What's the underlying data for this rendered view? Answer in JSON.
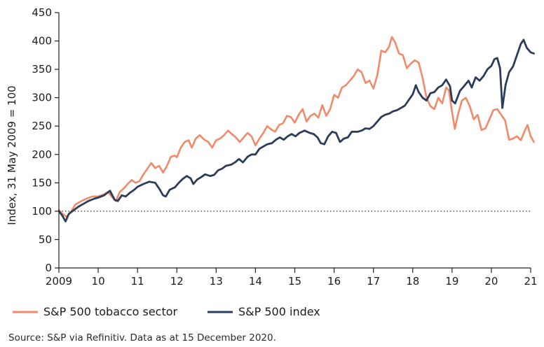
{
  "chart_data": {
    "type": "line",
    "title": "",
    "xlabel": "",
    "ylabel": "Index, 31 May 2009 = 100",
    "xlim": [
      2009.0,
      2021.0
    ],
    "ylim": [
      0,
      450
    ],
    "y_ticks": [
      0,
      50,
      100,
      150,
      200,
      250,
      300,
      350,
      400,
      450
    ],
    "x_ticks": [
      {
        "value": 2009,
        "label": "2009"
      },
      {
        "value": 2010,
        "label": "10"
      },
      {
        "value": 2011,
        "label": "11"
      },
      {
        "value": 2012,
        "label": "12"
      },
      {
        "value": 2013,
        "label": "13"
      },
      {
        "value": 2014,
        "label": "14"
      },
      {
        "value": 2015,
        "label": "15"
      },
      {
        "value": 2016,
        "label": "16"
      },
      {
        "value": 2017,
        "label": "17"
      },
      {
        "value": 2018,
        "label": "18"
      },
      {
        "value": 2019,
        "label": "19"
      },
      {
        "value": 2020,
        "label": "20"
      },
      {
        "value": 2021,
        "label": "21"
      }
    ],
    "reference_line": {
      "y": 100,
      "style": "dotted"
    },
    "grid": false,
    "legend_position": "bottom",
    "series": [
      {
        "name": "S&P 500 tobacco sector",
        "color": "#f08a6a",
        "points": [
          [
            2009.0,
            102
          ],
          [
            2009.1,
            95
          ],
          [
            2009.2,
            90
          ],
          [
            2009.3,
            98
          ],
          [
            2009.42,
            112
          ],
          [
            2009.55,
            117
          ],
          [
            2009.7,
            122
          ],
          [
            2009.85,
            126
          ],
          [
            2010.0,
            126
          ],
          [
            2010.15,
            130
          ],
          [
            2010.25,
            134
          ],
          [
            2010.35,
            125
          ],
          [
            2010.45,
            118
          ],
          [
            2010.55,
            134
          ],
          [
            2010.65,
            140
          ],
          [
            2010.75,
            148
          ],
          [
            2010.85,
            155
          ],
          [
            2010.95,
            150
          ],
          [
            2011.05,
            153
          ],
          [
            2011.15,
            165
          ],
          [
            2011.25,
            175
          ],
          [
            2011.35,
            185
          ],
          [
            2011.45,
            176
          ],
          [
            2011.55,
            180
          ],
          [
            2011.65,
            168
          ],
          [
            2011.75,
            180
          ],
          [
            2011.85,
            196
          ],
          [
            2011.95,
            198
          ],
          [
            2012.0,
            195
          ],
          [
            2012.1,
            212
          ],
          [
            2012.2,
            222
          ],
          [
            2012.3,
            225
          ],
          [
            2012.38,
            212
          ],
          [
            2012.48,
            228
          ],
          [
            2012.58,
            234
          ],
          [
            2012.7,
            226
          ],
          [
            2012.8,
            222
          ],
          [
            2012.9,
            212
          ],
          [
            2013.0,
            225
          ],
          [
            2013.1,
            228
          ],
          [
            2013.2,
            234
          ],
          [
            2013.3,
            242
          ],
          [
            2013.4,
            236
          ],
          [
            2013.5,
            230
          ],
          [
            2013.6,
            222
          ],
          [
            2013.7,
            230
          ],
          [
            2013.8,
            238
          ],
          [
            2013.9,
            232
          ],
          [
            2014.0,
            216
          ],
          [
            2014.1,
            228
          ],
          [
            2014.2,
            238
          ],
          [
            2014.3,
            250
          ],
          [
            2014.4,
            244
          ],
          [
            2014.5,
            240
          ],
          [
            2014.6,
            252
          ],
          [
            2014.7,
            255
          ],
          [
            2014.8,
            268
          ],
          [
            2014.9,
            266
          ],
          [
            2015.0,
            256
          ],
          [
            2015.1,
            270
          ],
          [
            2015.2,
            280
          ],
          [
            2015.3,
            258
          ],
          [
            2015.4,
            268
          ],
          [
            2015.5,
            272
          ],
          [
            2015.6,
            265
          ],
          [
            2015.7,
            287
          ],
          [
            2015.8,
            268
          ],
          [
            2015.9,
            280
          ],
          [
            2016.0,
            305
          ],
          [
            2016.1,
            300
          ],
          [
            2016.2,
            318
          ],
          [
            2016.3,
            322
          ],
          [
            2016.4,
            330
          ],
          [
            2016.5,
            338
          ],
          [
            2016.6,
            350
          ],
          [
            2016.7,
            345
          ],
          [
            2016.8,
            326
          ],
          [
            2016.9,
            330
          ],
          [
            2017.0,
            316
          ],
          [
            2017.1,
            340
          ],
          [
            2017.2,
            383
          ],
          [
            2017.3,
            380
          ],
          [
            2017.4,
            390
          ],
          [
            2017.47,
            407
          ],
          [
            2017.55,
            398
          ],
          [
            2017.65,
            378
          ],
          [
            2017.75,
            375
          ],
          [
            2017.85,
            352
          ],
          [
            2017.95,
            360
          ],
          [
            2018.05,
            366
          ],
          [
            2018.15,
            362
          ],
          [
            2018.25,
            335
          ],
          [
            2018.35,
            300
          ],
          [
            2018.45,
            285
          ],
          [
            2018.55,
            280
          ],
          [
            2018.65,
            300
          ],
          [
            2018.75,
            290
          ],
          [
            2018.85,
            318
          ],
          [
            2018.92,
            313
          ],
          [
            2019.0,
            275
          ],
          [
            2019.07,
            245
          ],
          [
            2019.15,
            270
          ],
          [
            2019.25,
            295
          ],
          [
            2019.35,
            300
          ],
          [
            2019.45,
            285
          ],
          [
            2019.55,
            262
          ],
          [
            2019.65,
            270
          ],
          [
            2019.75,
            243
          ],
          [
            2019.85,
            246
          ],
          [
            2019.95,
            262
          ],
          [
            2020.05,
            278
          ],
          [
            2020.15,
            280
          ],
          [
            2020.25,
            270
          ],
          [
            2020.35,
            260
          ],
          [
            2020.45,
            226
          ],
          [
            2020.55,
            228
          ],
          [
            2020.65,
            232
          ],
          [
            2020.75,
            225
          ],
          [
            2020.85,
            242
          ],
          [
            2020.92,
            252
          ],
          [
            2021.0,
            232
          ],
          [
            2021.08,
            222
          ]
        ]
      },
      {
        "name": "S&P 500 index",
        "color": "#2b3d5b",
        "points": [
          [
            2009.0,
            100
          ],
          [
            2009.08,
            93
          ],
          [
            2009.17,
            82
          ],
          [
            2009.25,
            95
          ],
          [
            2009.38,
            102
          ],
          [
            2009.5,
            108
          ],
          [
            2009.6,
            112
          ],
          [
            2009.75,
            118
          ],
          [
            2009.9,
            122
          ],
          [
            2010.0,
            124
          ],
          [
            2010.15,
            128
          ],
          [
            2010.3,
            136
          ],
          [
            2010.42,
            120
          ],
          [
            2010.5,
            118
          ],
          [
            2010.6,
            128
          ],
          [
            2010.7,
            126
          ],
          [
            2010.8,
            132
          ],
          [
            2010.92,
            138
          ],
          [
            2011.0,
            143
          ],
          [
            2011.15,
            148
          ],
          [
            2011.3,
            152
          ],
          [
            2011.45,
            150
          ],
          [
            2011.55,
            140
          ],
          [
            2011.65,
            128
          ],
          [
            2011.72,
            126
          ],
          [
            2011.82,
            138
          ],
          [
            2011.95,
            142
          ],
          [
            2012.05,
            150
          ],
          [
            2012.15,
            157
          ],
          [
            2012.25,
            162
          ],
          [
            2012.35,
            158
          ],
          [
            2012.42,
            148
          ],
          [
            2012.52,
            156
          ],
          [
            2012.62,
            160
          ],
          [
            2012.72,
            165
          ],
          [
            2012.85,
            162
          ],
          [
            2012.95,
            164
          ],
          [
            2013.05,
            172
          ],
          [
            2013.15,
            175
          ],
          [
            2013.25,
            180
          ],
          [
            2013.38,
            182
          ],
          [
            2013.48,
            186
          ],
          [
            2013.58,
            192
          ],
          [
            2013.68,
            186
          ],
          [
            2013.8,
            196
          ],
          [
            2013.9,
            200
          ],
          [
            2014.0,
            200
          ],
          [
            2014.1,
            210
          ],
          [
            2014.2,
            214
          ],
          [
            2014.3,
            218
          ],
          [
            2014.42,
            220
          ],
          [
            2014.52,
            226
          ],
          [
            2014.62,
            230
          ],
          [
            2014.72,
            226
          ],
          [
            2014.82,
            232
          ],
          [
            2014.92,
            236
          ],
          [
            2015.02,
            232
          ],
          [
            2015.12,
            238
          ],
          [
            2015.25,
            242
          ],
          [
            2015.38,
            238
          ],
          [
            2015.48,
            236
          ],
          [
            2015.58,
            230
          ],
          [
            2015.66,
            220
          ],
          [
            2015.75,
            218
          ],
          [
            2015.85,
            232
          ],
          [
            2015.95,
            240
          ],
          [
            2016.05,
            238
          ],
          [
            2016.15,
            222
          ],
          [
            2016.25,
            228
          ],
          [
            2016.35,
            230
          ],
          [
            2016.45,
            240
          ],
          [
            2016.6,
            240
          ],
          [
            2016.7,
            242
          ],
          [
            2016.8,
            246
          ],
          [
            2016.9,
            245
          ],
          [
            2017.0,
            250
          ],
          [
            2017.1,
            258
          ],
          [
            2017.2,
            266
          ],
          [
            2017.3,
            270
          ],
          [
            2017.4,
            272
          ],
          [
            2017.5,
            276
          ],
          [
            2017.6,
            278
          ],
          [
            2017.7,
            282
          ],
          [
            2017.8,
            286
          ],
          [
            2017.9,
            296
          ],
          [
            2018.0,
            306
          ],
          [
            2018.08,
            322
          ],
          [
            2018.15,
            310
          ],
          [
            2018.25,
            300
          ],
          [
            2018.35,
            295
          ],
          [
            2018.45,
            308
          ],
          [
            2018.55,
            310
          ],
          [
            2018.65,
            318
          ],
          [
            2018.75,
            322
          ],
          [
            2018.85,
            332
          ],
          [
            2018.95,
            320
          ],
          [
            2019.0,
            295
          ],
          [
            2019.08,
            290
          ],
          [
            2019.2,
            312
          ],
          [
            2019.3,
            320
          ],
          [
            2019.42,
            330
          ],
          [
            2019.5,
            318
          ],
          [
            2019.6,
            336
          ],
          [
            2019.7,
            330
          ],
          [
            2019.8,
            338
          ],
          [
            2019.9,
            350
          ],
          [
            2020.0,
            356
          ],
          [
            2020.08,
            368
          ],
          [
            2020.15,
            370
          ],
          [
            2020.22,
            352
          ],
          [
            2020.28,
            282
          ],
          [
            2020.36,
            322
          ],
          [
            2020.45,
            345
          ],
          [
            2020.55,
            355
          ],
          [
            2020.65,
            375
          ],
          [
            2020.75,
            395
          ],
          [
            2020.82,
            402
          ],
          [
            2020.9,
            388
          ],
          [
            2021.0,
            380
          ],
          [
            2021.08,
            378
          ]
        ]
      }
    ]
  },
  "legend": {
    "items": [
      {
        "label": "S&P 500 tobacco sector",
        "color": "#f08a6a"
      },
      {
        "label": "S&P 500 index",
        "color": "#2b3d5b"
      }
    ]
  },
  "source_note": "Source: S&P via Refinitiv. Data as at 15 December 2020."
}
